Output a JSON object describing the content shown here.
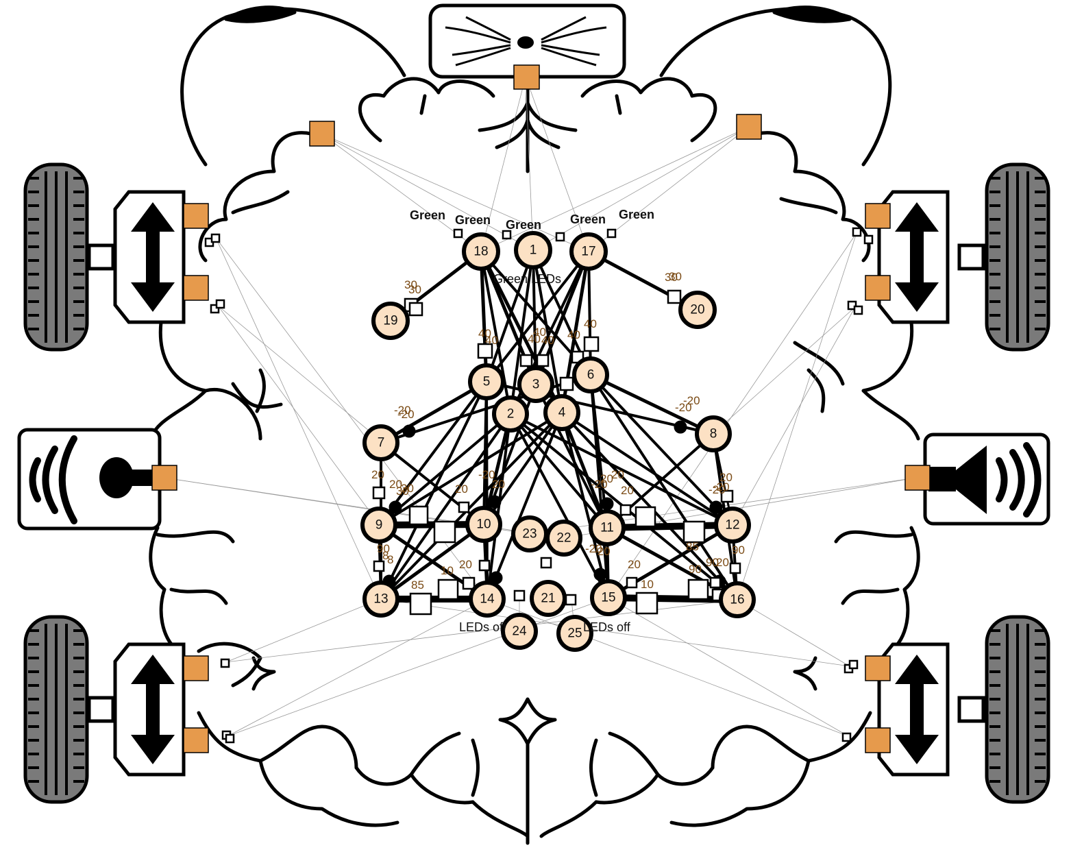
{
  "diagram": {
    "title": "Brain neural network robot diagram",
    "colors": {
      "neuron_fill": "#fce1c4",
      "sensor_fill": "#e69a4c",
      "stroke": "#000000",
      "weight_text": "#7a4a14",
      "tire_fill": "#7a7a7a"
    },
    "peripherals": [
      {
        "id": "camera",
        "icon": "camera-icon"
      },
      {
        "id": "microphone",
        "icon": "microphone-icon"
      },
      {
        "id": "speaker",
        "icon": "speaker-icon"
      },
      {
        "id": "front-left-motor",
        "icon": "motor-icon"
      },
      {
        "id": "front-right-motor",
        "icon": "motor-icon"
      },
      {
        "id": "back-left-motor",
        "icon": "motor-icon"
      },
      {
        "id": "back-right-motor",
        "icon": "motor-icon"
      }
    ],
    "neurons": [
      "1",
      "2",
      "3",
      "4",
      "5",
      "6",
      "7",
      "8",
      "9",
      "10",
      "11",
      "12",
      "13",
      "14",
      "15",
      "16",
      "17",
      "18",
      "19",
      "20",
      "21",
      "22",
      "23",
      "24",
      "25"
    ],
    "color_sensor_labels": [
      "Green",
      "Green",
      "Green",
      "Green",
      "Green"
    ],
    "led_labels": [
      "LEDs off",
      "LEDs off"
    ],
    "overlap_label": "Green LEDs",
    "weight_labels": [
      "30",
      "30",
      "30",
      "30",
      "40",
      "40",
      "40",
      "40",
      "40",
      "40",
      "40",
      "-20",
      "-20",
      "-20",
      "-20",
      "20",
      "20",
      "20",
      "20",
      "30",
      "30",
      "20",
      "20",
      "20",
      "-20",
      "-20",
      "20",
      "20",
      "10",
      "10",
      "85",
      "85",
      "90",
      "90",
      "90",
      "90",
      "8",
      "8",
      "-20",
      "-20",
      "-20",
      "-20",
      "20",
      "20"
    ]
  }
}
